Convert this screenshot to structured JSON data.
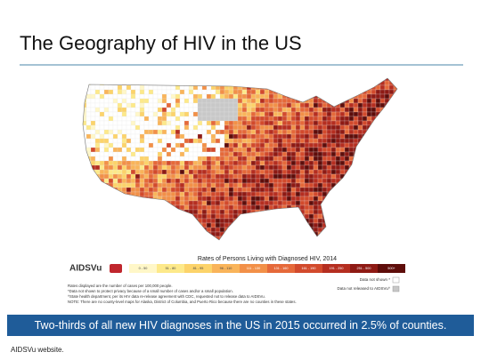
{
  "title": "The Geography of HIV in the US",
  "map": {
    "legend_title": "Rates of Persons Living with Diagnosed HIV, 2014",
    "logo": "AIDSVu",
    "legend_bins": [
      "0 - 50",
      "51 - 80",
      "81 - 95",
      "96 - 110",
      "111 - 130",
      "131 - 160",
      "161 - 190",
      "191 - 250",
      "251 - 500",
      "500+"
    ],
    "legend_colors": [
      "#fff7c8",
      "#fde98a",
      "#fcd36a",
      "#f9b45a",
      "#f29048",
      "#e5693a",
      "#d24a2c",
      "#b52e20",
      "#8e1a14",
      "#5e0d0a"
    ],
    "data_not_shown": "Data not shown *",
    "data_not_released": "Data not released to AIDSVu^",
    "notes": [
      "Rates displayed are the number of cases per 100,000 people.",
      "*Data not shown to protect privacy because of a small number of cases and/or a small population.",
      "^State health department, per its HIV data re-release agreement with CDC, requested not to release data to AIDSVu.",
      "NOTE: There are no county-level maps for Alaska, District of Columbia, and Puerto Rico because there are no counties in these states."
    ]
  },
  "banner": "Two-thirds of all new HIV diagnoses in the US in 2015 occurred in 2.5% of counties.",
  "source": "AIDSVu website."
}
